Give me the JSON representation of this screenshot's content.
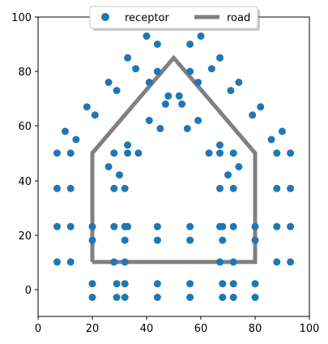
{
  "chart_data": {
    "type": "scatter",
    "title": "",
    "xlabel": "",
    "ylabel": "",
    "xlim": [
      0,
      100
    ],
    "ylim": [
      -10,
      100
    ],
    "x_ticks": [
      0,
      20,
      40,
      60,
      80,
      100
    ],
    "y_ticks": [
      0,
      20,
      40,
      60,
      80,
      100
    ],
    "x_tick_labels": [
      "0",
      "20",
      "40",
      "60",
      "80",
      "100"
    ],
    "y_tick_labels": [
      "0",
      "20",
      "40",
      "60",
      "80",
      "100"
    ],
    "grid": false,
    "legend": {
      "placement": "top-center",
      "columns": 2,
      "entries": [
        {
          "label": "receptor",
          "marker": "circle",
          "color": "#1f77b4"
        },
        {
          "label": "road",
          "marker": "line",
          "color": "#808080"
        }
      ]
    },
    "series": [
      {
        "name": "receptor",
        "kind": "scatter",
        "color": "#1f77b4",
        "points": [
          [
            20,
            2
          ],
          [
            20,
            -3
          ],
          [
            29,
            2
          ],
          [
            29,
            -3
          ],
          [
            32,
            2
          ],
          [
            32,
            -3
          ],
          [
            44,
            2
          ],
          [
            44,
            -3
          ],
          [
            56,
            2
          ],
          [
            56,
            -3
          ],
          [
            68,
            2
          ],
          [
            68,
            -3
          ],
          [
            72,
            2
          ],
          [
            72,
            -3
          ],
          [
            80,
            2
          ],
          [
            80,
            -3
          ],
          [
            7,
            10
          ],
          [
            12,
            10
          ],
          [
            28,
            10
          ],
          [
            32,
            10
          ],
          [
            67,
            10
          ],
          [
            72,
            10
          ],
          [
            88,
            10
          ],
          [
            93,
            10
          ],
          [
            20,
            18
          ],
          [
            32,
            18
          ],
          [
            44,
            18
          ],
          [
            56,
            18
          ],
          [
            68,
            18
          ],
          [
            80,
            18
          ],
          [
            7,
            23
          ],
          [
            12,
            23
          ],
          [
            20,
            23
          ],
          [
            28,
            23
          ],
          [
            32,
            23
          ],
          [
            33,
            23
          ],
          [
            44,
            23
          ],
          [
            56,
            23
          ],
          [
            67,
            23
          ],
          [
            68,
            23
          ],
          [
            72,
            23
          ],
          [
            80,
            23
          ],
          [
            88,
            23
          ],
          [
            93,
            23
          ],
          [
            7,
            37
          ],
          [
            12,
            37
          ],
          [
            28,
            37
          ],
          [
            32,
            37
          ],
          [
            67,
            37
          ],
          [
            72,
            37
          ],
          [
            88,
            37
          ],
          [
            93,
            37
          ],
          [
            7,
            50
          ],
          [
            12,
            50
          ],
          [
            28,
            50
          ],
          [
            33,
            50
          ],
          [
            37,
            50
          ],
          [
            63,
            50
          ],
          [
            67,
            50
          ],
          [
            72,
            50
          ],
          [
            88,
            50
          ],
          [
            93,
            50
          ],
          [
            26,
            45
          ],
          [
            30,
            42
          ],
          [
            33,
            53
          ],
          [
            67,
            53
          ],
          [
            70,
            42
          ],
          [
            74,
            45
          ],
          [
            10,
            58
          ],
          [
            14,
            55
          ],
          [
            90,
            58
          ],
          [
            86,
            55
          ],
          [
            18,
            67
          ],
          [
            21,
            64
          ],
          [
            82,
            67
          ],
          [
            79,
            64
          ],
          [
            41,
            62
          ],
          [
            45,
            59
          ],
          [
            55,
            59
          ],
          [
            59,
            62
          ],
          [
            26,
            76
          ],
          [
            29,
            73
          ],
          [
            74,
            76
          ],
          [
            71,
            73
          ],
          [
            33,
            85
          ],
          [
            36,
            81
          ],
          [
            67,
            85
          ],
          [
            64,
            81
          ],
          [
            41,
            76
          ],
          [
            44,
            80
          ],
          [
            56,
            80
          ],
          [
            59,
            76
          ],
          [
            48,
            71
          ],
          [
            52,
            71
          ],
          [
            47,
            68
          ],
          [
            53,
            68
          ],
          [
            40,
            93
          ],
          [
            44,
            90
          ],
          [
            56,
            90
          ],
          [
            60,
            93
          ]
        ]
      },
      {
        "name": "road",
        "kind": "line",
        "color": "#808080",
        "points": [
          [
            20,
            10
          ],
          [
            80,
            10
          ],
          [
            80,
            50
          ],
          [
            50,
            85
          ],
          [
            20,
            50
          ],
          [
            20,
            10
          ]
        ]
      }
    ]
  }
}
